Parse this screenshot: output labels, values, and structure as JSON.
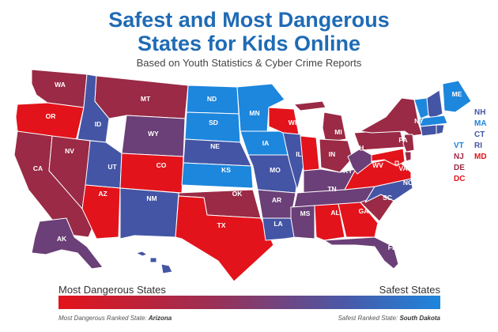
{
  "title_line1": "Safest and Most Dangerous",
  "title_line2": "States for Kids Online",
  "subtitle": "Based on Youth Statistics & Cyber Crime Reports",
  "colors": {
    "most_dangerous": "#e3131b",
    "dark_red": "#9a2a45",
    "purple": "#6b3f77",
    "blue_purple": "#4455a5",
    "safest": "#1d86dd"
  },
  "states": {
    "WA": "#9a2a45",
    "OR": "#e3131b",
    "CA": "#9a2a45",
    "NV": "#9a2a45",
    "ID": "#4455a5",
    "MT": "#9a2a45",
    "WY": "#6b3f77",
    "UT": "#4455a5",
    "AZ": "#e3131b",
    "CO": "#e3131b",
    "NM": "#4455a5",
    "ND": "#1d86dd",
    "SD": "#1d86dd",
    "NE": "#4455a5",
    "KS": "#1d86dd",
    "OK": "#9a2a45",
    "TX": "#e3131b",
    "MN": "#1d86dd",
    "IA": "#1d86dd",
    "MO": "#4455a5",
    "AR": "#6b3f77",
    "LA": "#4455a5",
    "WI": "#e3131b",
    "IL": "#4455a5",
    "MI": "#9a2a45",
    "IN": "#e3131b",
    "OH": "#9a2a45",
    "KY": "#6b3f77",
    "TN": "#6b3f77",
    "MS": "#6b3f77",
    "AL": "#e3131b",
    "GA": "#e3131b",
    "FL": "#6b3f77",
    "SC": "#9a2a45",
    "NC": "#4455a5",
    "VA": "#e3131b",
    "WV": "#6b3f77",
    "PA": "#9a2a45",
    "NY": "#9a2a45",
    "ME": "#1d86dd",
    "AK": "#6b3f77",
    "HI": "#4455a5"
  },
  "side_labels": [
    {
      "text": "NH",
      "color": "#4455a5"
    },
    {
      "text": "MA",
      "color": "#1d86dd"
    },
    {
      "text": "CT",
      "color": "#4455a5"
    },
    {
      "text": "RI",
      "color": "#4455a5"
    },
    {
      "text": "VT",
      "color": "#1d86dd"
    },
    {
      "text": "MD",
      "color": "#e3131b"
    },
    {
      "text": "NJ",
      "color": "#9a2a45"
    },
    {
      "text": "DE",
      "color": "#9a2a45"
    },
    {
      "text": "DC",
      "color": "#e3131b"
    }
  ],
  "legend": {
    "left_label": "Most Dangerous States",
    "right_label": "Safest States",
    "footnote_left_prefix": "Most Dangerous Ranked State:",
    "footnote_left_value": "Arizona",
    "footnote_right_prefix": "Safest Ranked State:",
    "footnote_right_value": "South Dakota"
  }
}
